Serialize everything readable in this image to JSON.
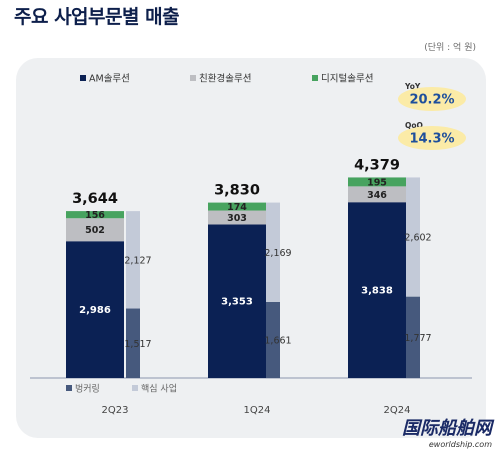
{
  "title": "주요 사업부문별 매출",
  "unit_note": "(단위 : 억 원)",
  "watermark": {
    "cn": "国际船舶网",
    "en": "eworldship.com"
  },
  "colors": {
    "am": "#0b2154",
    "eco": "#bdbec2",
    "digital": "#47a35f",
    "legacy_bar": "#46597d",
    "core_bar": "#c3cad8",
    "badge": "#fbeba7",
    "badge_text": "#1e4f9c"
  },
  "chart_data": {
    "type": "bar",
    "categories": [
      "2Q23",
      "1Q24",
      "2Q24"
    ],
    "stacked_series": [
      {
        "name": "AM솔루션",
        "values": [
          2986,
          3353,
          3838
        ]
      },
      {
        "name": "친환경솔루션",
        "values": [
          502,
          303,
          346
        ]
      },
      {
        "name": "디지털솔루션",
        "values": [
          156,
          174,
          195
        ]
      }
    ],
    "totals": [
      3644,
      3830,
      4379
    ],
    "side_series": [
      {
        "name": "벙커링",
        "values": [
          1517,
          1661,
          1777
        ]
      },
      {
        "name": "핵심 사업",
        "values": [
          2127,
          2169,
          2602
        ]
      }
    ],
    "badges": [
      {
        "label": "YoY",
        "value": "20.2%"
      },
      {
        "label": "QoQ",
        "value": "14.3%"
      }
    ],
    "ylim": [
      0,
      4700
    ]
  }
}
